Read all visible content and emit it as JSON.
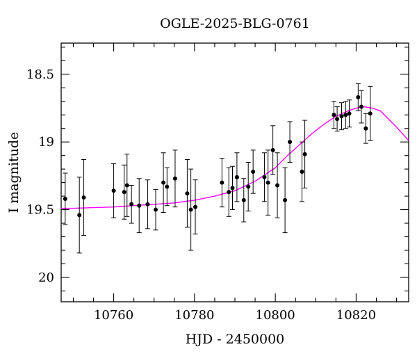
{
  "chart_data": {
    "type": "scatter",
    "title": "OGLE-2025-BLG-0761",
    "xlabel": "HJD - 2450000",
    "ylabel": "I magnitude",
    "xlim": [
      10747,
      10833
    ],
    "ylim": [
      20.18,
      18.27
    ],
    "y_inverted": true,
    "x_ticks": [
      10760,
      10780,
      10800,
      10820
    ],
    "y_ticks": [
      "18.5",
      "19",
      "19.5",
      "20"
    ],
    "y_tick_values": [
      18.5,
      19.0,
      19.5,
      20.0
    ],
    "grid": false,
    "series": [
      {
        "kind": "data_points",
        "color": "#000000",
        "points": [
          {
            "x": 10748.0,
            "y": 19.42,
            "err": 0.19
          },
          {
            "x": 10751.5,
            "y": 19.54,
            "err": 0.28
          },
          {
            "x": 10752.6,
            "y": 19.41,
            "err": 0.28
          },
          {
            "x": 10760.0,
            "y": 19.36,
            "err": 0.2
          },
          {
            "x": 10762.6,
            "y": 19.37,
            "err": 0.2
          },
          {
            "x": 10763.3,
            "y": 19.32,
            "err": 0.23
          },
          {
            "x": 10764.4,
            "y": 19.46,
            "err": 0.14
          },
          {
            "x": 10766.3,
            "y": 19.47,
            "err": 0.2
          },
          {
            "x": 10768.4,
            "y": 19.46,
            "err": 0.18
          },
          {
            "x": 10770.4,
            "y": 19.5,
            "err": 0.15
          },
          {
            "x": 10772.3,
            "y": 19.3,
            "err": 0.22
          },
          {
            "x": 10773.2,
            "y": 19.33,
            "err": 0.14
          },
          {
            "x": 10775.2,
            "y": 19.27,
            "err": 0.21
          },
          {
            "x": 10778.2,
            "y": 19.38,
            "err": 0.25
          },
          {
            "x": 10779.1,
            "y": 19.5,
            "err": 0.3
          },
          {
            "x": 10780.2,
            "y": 19.48,
            "err": 0.2
          },
          {
            "x": 10786.8,
            "y": 19.3,
            "err": 0.18
          },
          {
            "x": 10788.5,
            "y": 19.37,
            "err": 0.18
          },
          {
            "x": 10789.4,
            "y": 19.34,
            "err": 0.16
          },
          {
            "x": 10790.5,
            "y": 19.26,
            "err": 0.18
          },
          {
            "x": 10792.2,
            "y": 19.43,
            "err": 0.16
          },
          {
            "x": 10793.3,
            "y": 19.33,
            "err": 0.18
          },
          {
            "x": 10794.5,
            "y": 19.22,
            "err": 0.16
          },
          {
            "x": 10797.3,
            "y": 19.26,
            "err": 0.18
          },
          {
            "x": 10798.2,
            "y": 19.3,
            "err": 0.24
          },
          {
            "x": 10799.4,
            "y": 19.06,
            "err": 0.18
          },
          {
            "x": 10800.5,
            "y": 19.32,
            "err": 0.24
          },
          {
            "x": 10802.4,
            "y": 19.43,
            "err": 0.24
          },
          {
            "x": 10803.6,
            "y": 19.0,
            "err": 0.15
          },
          {
            "x": 10806.6,
            "y": 19.22,
            "err": 0.22
          },
          {
            "x": 10807.3,
            "y": 19.09,
            "err": 0.25
          },
          {
            "x": 10814.5,
            "y": 18.8,
            "err": 0.1
          },
          {
            "x": 10815.3,
            "y": 18.83,
            "err": 0.09
          },
          {
            "x": 10816.4,
            "y": 18.81,
            "err": 0.1
          },
          {
            "x": 10817.4,
            "y": 18.8,
            "err": 0.1
          },
          {
            "x": 10818.3,
            "y": 18.79,
            "err": 0.1
          },
          {
            "x": 10820.5,
            "y": 18.67,
            "err": 0.1
          },
          {
            "x": 10821.3,
            "y": 18.74,
            "err": 0.12
          },
          {
            "x": 10822.4,
            "y": 18.9,
            "err": 0.11
          },
          {
            "x": 10823.5,
            "y": 18.79,
            "err": 0.2
          }
        ]
      },
      {
        "kind": "model_curve",
        "color": "#ff00ff",
        "points": [
          {
            "x": 10747,
            "y": 19.49
          },
          {
            "x": 10750,
            "y": 19.49
          },
          {
            "x": 10755,
            "y": 19.485
          },
          {
            "x": 10760,
            "y": 19.48
          },
          {
            "x": 10765,
            "y": 19.47
          },
          {
            "x": 10770,
            "y": 19.46
          },
          {
            "x": 10775,
            "y": 19.45
          },
          {
            "x": 10780,
            "y": 19.43
          },
          {
            "x": 10785,
            "y": 19.4
          },
          {
            "x": 10790,
            "y": 19.36
          },
          {
            "x": 10795,
            "y": 19.29
          },
          {
            "x": 10800,
            "y": 19.19
          },
          {
            "x": 10803,
            "y": 19.1
          },
          {
            "x": 10806,
            "y": 19.02
          },
          {
            "x": 10809,
            "y": 18.94
          },
          {
            "x": 10812,
            "y": 18.87
          },
          {
            "x": 10815,
            "y": 18.81
          },
          {
            "x": 10818,
            "y": 18.77
          },
          {
            "x": 10820,
            "y": 18.75
          },
          {
            "x": 10822,
            "y": 18.74
          },
          {
            "x": 10824,
            "y": 18.75
          },
          {
            "x": 10826,
            "y": 18.77
          },
          {
            "x": 10828,
            "y": 18.83
          },
          {
            "x": 10830,
            "y": 18.89
          },
          {
            "x": 10833,
            "y": 18.99
          }
        ]
      }
    ]
  }
}
